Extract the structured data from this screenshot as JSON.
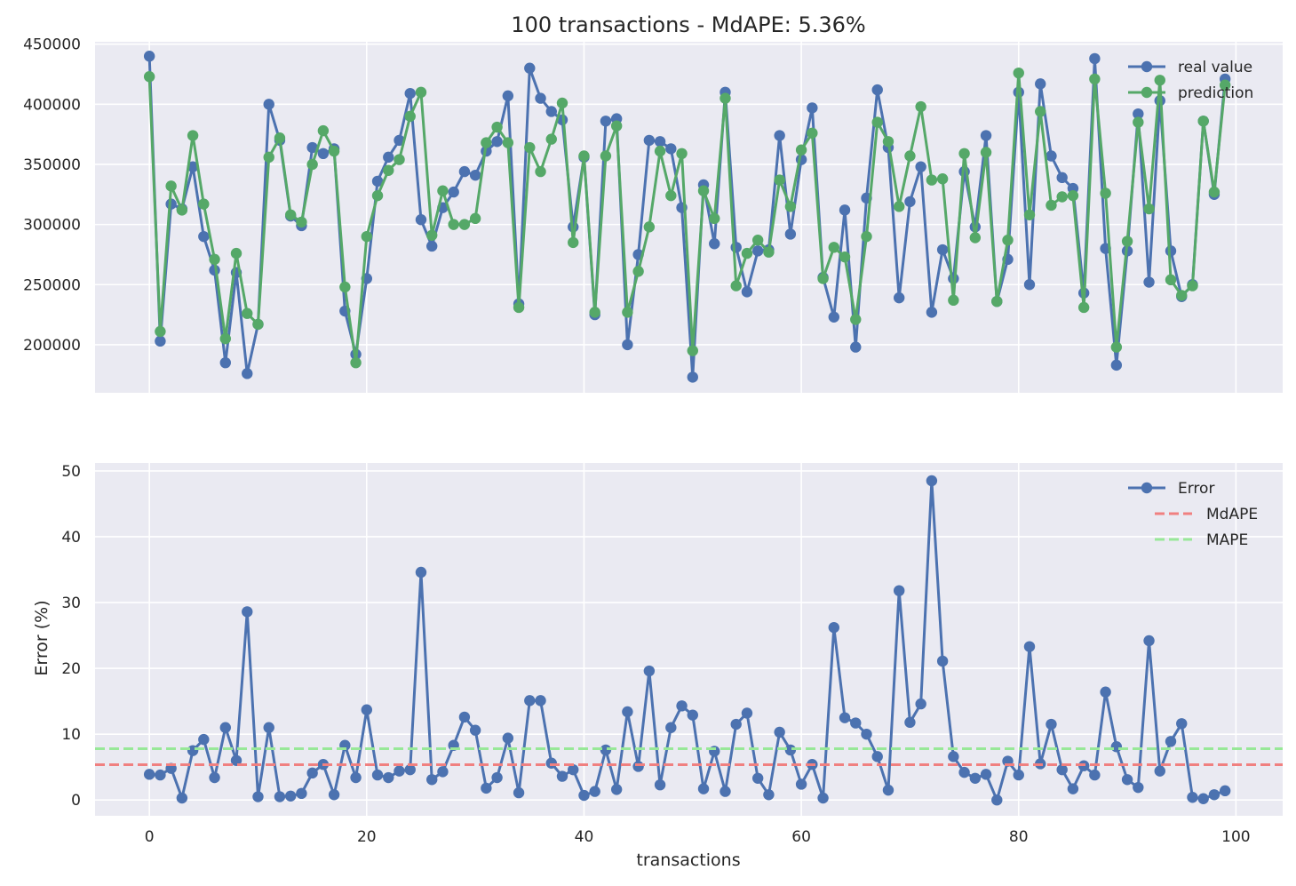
{
  "chart_data": {
    "title": "100 transactions - MdAPE: 5.36%",
    "xlabel": "transactions",
    "colors": {
      "real": "#4c72b0",
      "prediction": "#55a868",
      "error": "#4c72b0",
      "mdape": "#f08080",
      "mape": "#98e898",
      "background": "#eaeaf2",
      "grid": "#ffffff"
    },
    "x_ticks": [
      0,
      20,
      40,
      60,
      80,
      100
    ],
    "panels": [
      {
        "type": "line",
        "ylabel": "",
        "ylim": [
          160000,
          452000
        ],
        "y_ticks": [
          200000,
          250000,
          300000,
          350000,
          400000,
          450000
        ],
        "legend_position": "top-right",
        "series": [
          {
            "name": "real value",
            "color_key": "real",
            "values": [
              440000,
              203000,
              317000,
              313000,
              348000,
              290000,
              262000,
              185000,
              260000,
              176000,
              217000,
              400000,
              370000,
              307000,
              299000,
              364000,
              359000,
              363000,
              228000,
              192000,
              255000,
              336000,
              356000,
              370000,
              409000,
              304000,
              282000,
              314000,
              327000,
              344000,
              341000,
              361000,
              369000,
              407000,
              234000,
              430000,
              405000,
              394000,
              387000,
              298000,
              356000,
              225000,
              386000,
              388000,
              200000,
              275000,
              370000,
              369000,
              363000,
              314000,
              173000,
              333000,
              284000,
              410000,
              281000,
              244000,
              278000,
              279000,
              374000,
              292000,
              354000,
              397000,
              256000,
              223000,
              312000,
              198000,
              322000,
              412000,
              364000,
              239000,
              319000,
              348000,
              227000,
              279000,
              255000,
              344000,
              298000,
              374000,
              236000,
              271000,
              410000,
              250000,
              417000,
              357000,
              339000,
              330000,
              243000,
              438000,
              280000,
              183000,
              278000,
              392000,
              252000,
              403000,
              278000,
              240000,
              250000,
              386000,
              325000,
              421000
            ]
          },
          {
            "name": "prediction",
            "color_key": "prediction",
            "values": [
              423000,
              211000,
              332000,
              312000,
              374000,
              317000,
              271000,
              205000,
              276000,
              226000,
              217000,
              356000,
              372000,
              308000,
              302000,
              350000,
              378000,
              361000,
              248000,
              185000,
              290000,
              324000,
              345000,
              354000,
              390000,
              410000,
              291000,
              328000,
              300000,
              300000,
              305000,
              368000,
              381000,
              368000,
              231000,
              364000,
              344000,
              371000,
              401000,
              285000,
              357000,
              227000,
              357000,
              382000,
              227000,
              261000,
              298000,
              361000,
              324000,
              359000,
              195000,
              328000,
              305000,
              405000,
              249000,
              276000,
              287000,
              277000,
              337000,
              315000,
              362000,
              376000,
              255000,
              281000,
              273000,
              221000,
              290000,
              385000,
              369000,
              315000,
              357000,
              398000,
              337000,
              338000,
              237000,
              359000,
              289000,
              360000,
              236000,
              287000,
              426000,
              308000,
              394000,
              316000,
              323000,
              324000,
              231000,
              421000,
              326000,
              198000,
              286000,
              385000,
              313000,
              420000,
              254000,
              241000,
              249000,
              386000,
              327000,
              416000
            ]
          }
        ]
      },
      {
        "type": "line",
        "ylabel": "Error (%)",
        "ylim": [
          -2.4,
          51.2
        ],
        "y_ticks": [
          0,
          10,
          20,
          30,
          40,
          50
        ],
        "legend_position": "top-right",
        "series": [
          {
            "name": "Error",
            "color_key": "error",
            "values": [
              3.9,
              3.8,
              4.8,
              0.3,
              7.5,
              9.2,
              3.4,
              11.0,
              6.0,
              28.6,
              0.5,
              11.0,
              0.5,
              0.6,
              1.0,
              4.1,
              5.4,
              0.8,
              8.3,
              3.4,
              13.7,
              3.8,
              3.4,
              4.4,
              4.6,
              34.6,
              3.1,
              4.3,
              8.3,
              12.6,
              10.6,
              1.8,
              3.4,
              9.4,
              1.1,
              15.1,
              15.1,
              5.6,
              3.6,
              4.6,
              0.7,
              1.3,
              7.6,
              1.6,
              13.4,
              5.1,
              19.6,
              2.3,
              11.0,
              14.3,
              12.9,
              1.7,
              7.4,
              1.3,
              11.5,
              13.2,
              3.3,
              0.8,
              10.3,
              7.6,
              2.4,
              5.4,
              0.3,
              26.2,
              12.5,
              11.7,
              10.0,
              6.6,
              1.5,
              31.8,
              11.8,
              14.6,
              48.5,
              21.1,
              6.6,
              4.2,
              3.3,
              3.9,
              0.0,
              5.9,
              3.8,
              23.3,
              5.5,
              11.5,
              4.6,
              1.7,
              5.2,
              3.8,
              16.4,
              8.1,
              3.1,
              1.9,
              24.2,
              4.4,
              8.9,
              11.6,
              0.4,
              0.2,
              0.8,
              1.4
            ]
          },
          {
            "name": "MdAPE",
            "color_key": "mdape",
            "constant": 5.36
          },
          {
            "name": "MAPE",
            "color_key": "mape",
            "constant": 7.8
          }
        ]
      }
    ]
  }
}
